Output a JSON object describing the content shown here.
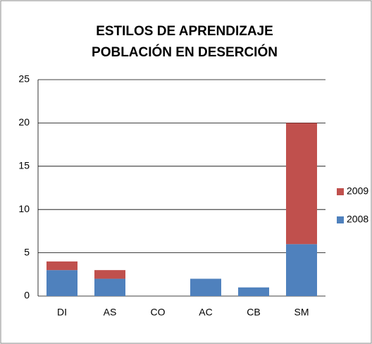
{
  "chart_data": {
    "type": "stacked_bar",
    "title": [
      "ESTILOS DE APRENDIZAJE",
      "POBLACIÓN EN DESERCIÓN"
    ],
    "categories": [
      "DI",
      "AS",
      "CO",
      "AC",
      "CB",
      "SM"
    ],
    "series": [
      {
        "name": "2008",
        "color": "#4f81bd",
        "values": [
          3,
          2,
          0,
          2,
          1,
          6
        ]
      },
      {
        "name": "2009",
        "color": "#c0504d",
        "values": [
          1,
          1,
          0,
          0,
          0,
          14
        ]
      }
    ],
    "ylim": [
      0,
      25
    ],
    "yticks": [
      0,
      5,
      10,
      15,
      20,
      25
    ],
    "grid": true,
    "legend": "right"
  }
}
